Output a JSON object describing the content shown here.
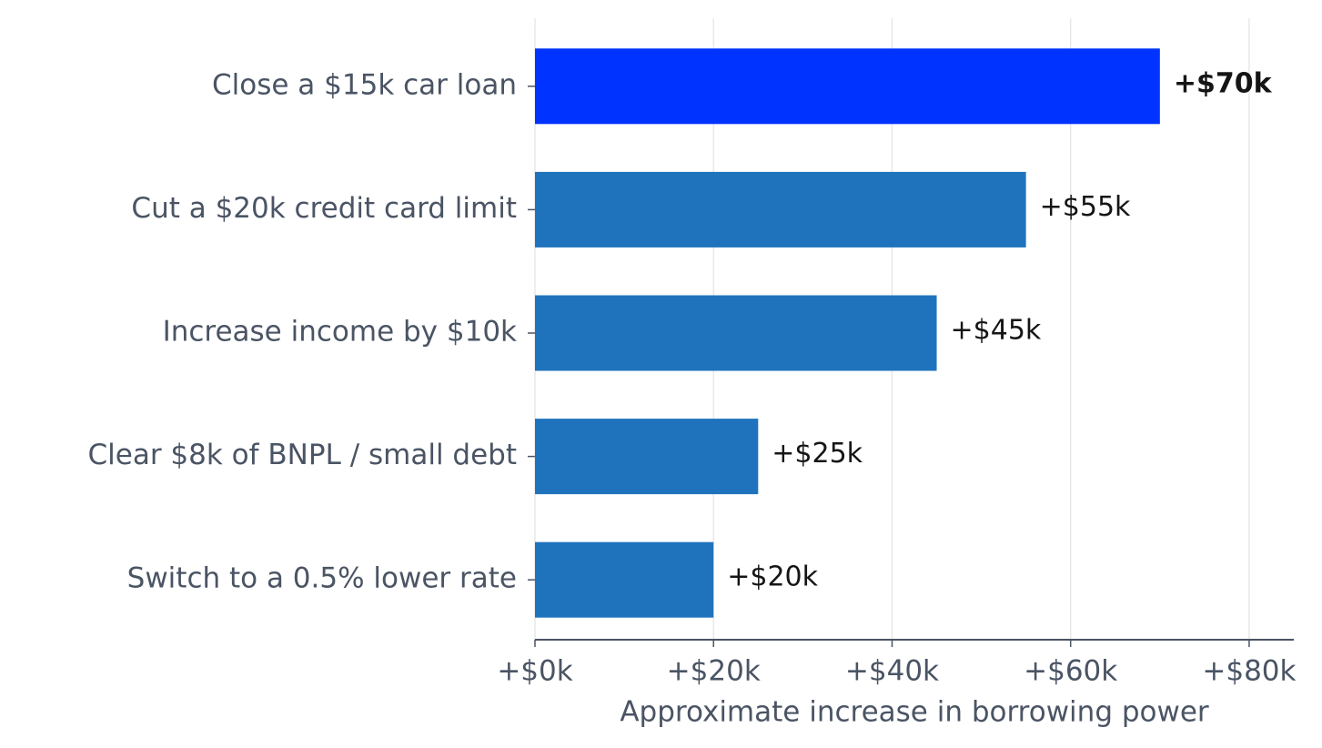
{
  "chart_data": {
    "type": "barh",
    "categories": [
      "Close a $15k car loan",
      "Cut a $20k credit card limit",
      "Increase income by $10k",
      "Clear $8k of BNPL / small debt",
      "Switch to a 0.5% lower rate"
    ],
    "values": [
      70,
      55,
      45,
      25,
      20
    ],
    "value_labels": [
      "+$70k",
      "+$55k",
      "+$45k",
      "+$25k",
      "+$20k"
    ],
    "colors": [
      "#0033ff",
      "#1f73bd",
      "#1f73bd",
      "#1f73bd",
      "#1f73bd"
    ],
    "highlight": 0,
    "xlabel": "Approximate increase in borrowing power",
    "xlim": [
      0,
      85
    ],
    "xticks": [
      {
        "value": 0,
        "label": "+$0k"
      },
      {
        "value": 20,
        "label": "+$20k"
      },
      {
        "value": 40,
        "label": "+$40k"
      },
      {
        "value": 60,
        "label": "+$60k"
      },
      {
        "value": 80,
        "label": "+$80k"
      }
    ],
    "grid": true
  }
}
